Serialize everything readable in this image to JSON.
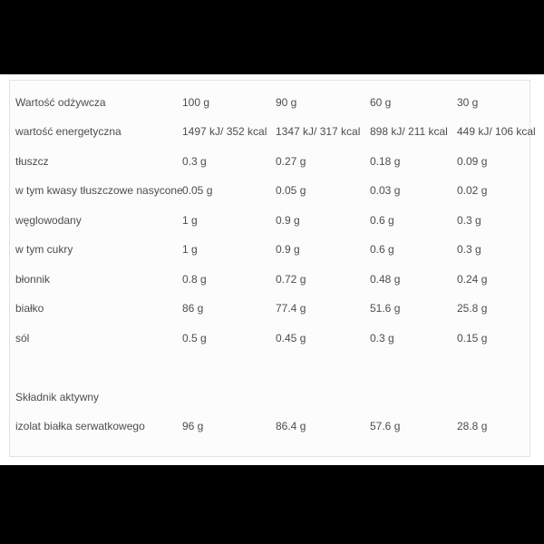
{
  "page": {
    "letterbox_color": "#000000",
    "background_color": "#ffffff"
  },
  "table": {
    "border_color": "#e5e2e2",
    "background_color": "#fcfcfc",
    "text_color": "#4d4d4d",
    "rows": [
      {
        "label": "Wartość odżywcza",
        "values": [
          "100 g",
          "90 g",
          "60 g",
          "30 g"
        ]
      },
      {
        "label": "wartość energetyczna",
        "values": [
          "1497 kJ/ 352 kcal",
          "1347 kJ/ 317 kcal",
          "898 kJ/ 211 kcal",
          "449 kJ/ 106 kcal"
        ]
      },
      {
        "label": "tłuszcz",
        "values": [
          "0.3 g",
          "0.27 g",
          "0.18 g",
          "0.09 g"
        ]
      },
      {
        "label": "w tym kwasy tłuszczowe nasycone",
        "values": [
          "0.05 g",
          "0.05 g",
          "0.03 g",
          "0.02 g"
        ]
      },
      {
        "label": "węglowodany",
        "values": [
          "1 g",
          "0.9 g",
          "0.6 g",
          "0.3 g"
        ]
      },
      {
        "label": "w tym cukry",
        "values": [
          "1 g",
          "0.9 g",
          "0.6 g",
          "0.3 g"
        ]
      },
      {
        "label": "błonnik",
        "values": [
          "0.8 g",
          "0.72 g",
          "0.48 g",
          "0.24 g"
        ]
      },
      {
        "label": "białko",
        "values": [
          "86 g",
          "77.4 g",
          "51.6 g",
          "25.8 g"
        ]
      },
      {
        "label": "sól",
        "values": [
          "0.5 g",
          "0.45 g",
          "0.3 g",
          "0.15 g"
        ]
      },
      {
        "label": "",
        "values": [
          "",
          "",
          "",
          ""
        ]
      },
      {
        "label": "Składnik aktywny",
        "values": [
          "",
          "",
          "",
          ""
        ]
      },
      {
        "label": "izolat białka serwatkowego",
        "values": [
          "96 g",
          "86.4 g",
          "57.6 g",
          "28.8 g"
        ]
      }
    ]
  }
}
